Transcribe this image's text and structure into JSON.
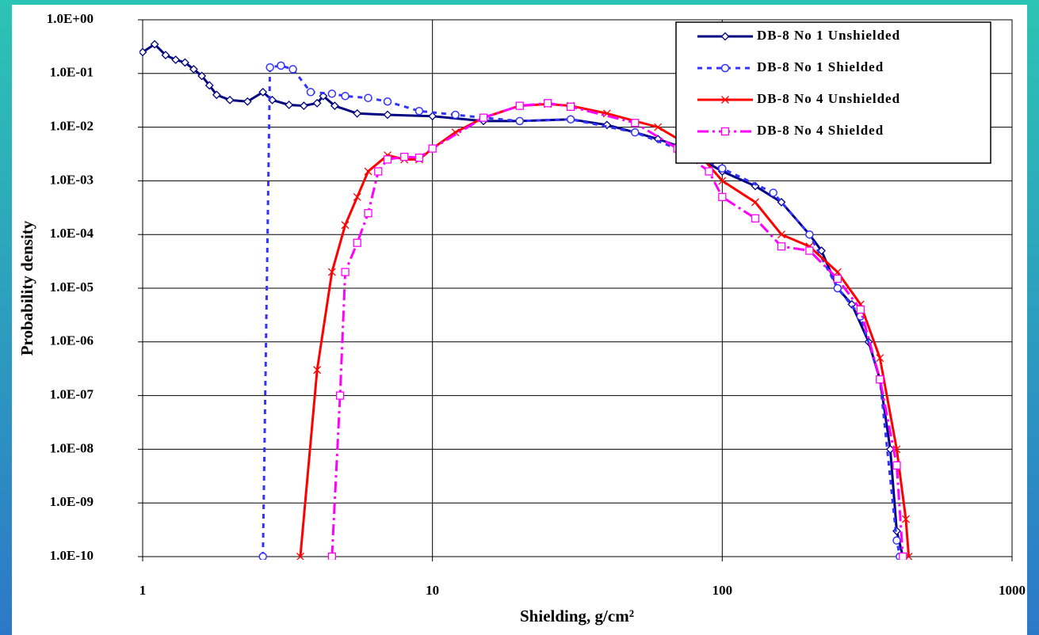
{
  "chart_data": {
    "type": "line",
    "x_label": "Shielding, g/cm²",
    "y_label": "Probability density",
    "xscale": "log",
    "yscale": "log",
    "grid": true,
    "legend": "top-right",
    "xlim": [
      1,
      1000
    ],
    "xticks": [
      1,
      10,
      100,
      1000
    ],
    "ylim": [
      1e-10,
      1
    ],
    "yticks": [
      {
        "value": 1,
        "label": "1.0E+00"
      },
      {
        "value": 0.1,
        "label": "1.0E-01"
      },
      {
        "value": 0.01,
        "label": "1.0E-02"
      },
      {
        "value": 0.001,
        "label": "1.0E-03"
      },
      {
        "value": 0.0001,
        "label": "1.0E-04"
      },
      {
        "value": 1e-05,
        "label": "1.0E-05"
      },
      {
        "value": 1e-06,
        "label": "1.0E-06"
      },
      {
        "value": 1e-07,
        "label": "1.0E-07"
      },
      {
        "value": 1e-08,
        "label": "1.0E-08"
      },
      {
        "value": 1e-09,
        "label": "1.0E-09"
      },
      {
        "value": 1e-10,
        "label": "1.0E-10"
      }
    ],
    "series": [
      {
        "name": "DB-8 No 1 Unshielded",
        "color": "#000080",
        "dash": "solid",
        "marker": "diamond",
        "x": [
          1.0,
          1.1,
          1.2,
          1.3,
          1.4,
          1.5,
          1.6,
          1.7,
          1.8,
          2.0,
          2.3,
          2.6,
          2.8,
          3.2,
          3.6,
          4.0,
          4.2,
          4.6,
          5.5,
          7,
          10,
          15,
          20,
          30,
          40,
          50,
          60,
          70,
          80,
          100,
          130,
          160,
          200,
          220,
          250,
          280,
          320,
          350,
          380,
          400,
          420
        ],
        "values": [
          0.25,
          0.35,
          0.22,
          0.18,
          0.16,
          0.12,
          0.09,
          0.06,
          0.04,
          0.032,
          0.03,
          0.045,
          0.032,
          0.026,
          0.025,
          0.028,
          0.038,
          0.025,
          0.018,
          0.017,
          0.016,
          0.013,
          0.013,
          0.014,
          0.011,
          0.008,
          0.006,
          0.0045,
          0.003,
          0.0015,
          0.0008,
          0.0004,
          0.0001,
          5e-05,
          1e-05,
          5e-06,
          1e-06,
          2e-07,
          1e-08,
          3e-10,
          1e-10
        ]
      },
      {
        "name": "DB-8 No 1 Shielded",
        "color": "#3333ff",
        "dash": "dashed",
        "marker": "circle",
        "x": [
          2.6,
          2.75,
          3.0,
          3.3,
          3.8,
          4.5,
          5,
          6,
          7,
          9,
          12,
          15,
          20,
          30,
          50,
          80,
          100,
          150,
          200,
          250,
          300,
          350,
          400,
          410
        ],
        "values": [
          1e-10,
          0.13,
          0.14,
          0.12,
          0.045,
          0.042,
          0.038,
          0.035,
          0.03,
          0.02,
          0.017,
          0.015,
          0.013,
          0.014,
          0.008,
          0.003,
          0.0017,
          0.0006,
          0.0001,
          1e-05,
          3e-06,
          2e-07,
          2e-10,
          1e-10
        ]
      },
      {
        "name": "DB-8 No 4 Unshielded",
        "color": "#ff0000",
        "dash": "solid",
        "marker": "cross",
        "x": [
          3.5,
          4.0,
          4.5,
          5,
          5.5,
          6,
          7,
          8,
          9,
          10,
          12,
          15,
          20,
          25,
          30,
          40,
          60,
          80,
          100,
          130,
          160,
          200,
          250,
          300,
          350,
          400,
          430,
          440
        ],
        "values": [
          1e-10,
          3e-07,
          2e-05,
          0.00015,
          0.0005,
          0.0015,
          0.003,
          0.0025,
          0.0025,
          0.004,
          0.008,
          0.015,
          0.025,
          0.027,
          0.025,
          0.018,
          0.01,
          0.004,
          0.001,
          0.0004,
          0.0001,
          6e-05,
          2e-05,
          5e-06,
          5e-07,
          1e-08,
          5e-10,
          1e-10
        ]
      },
      {
        "name": "DB-8 No 4 Shielded",
        "color": "#ff00ff",
        "dash": "dashdot",
        "marker": "square",
        "x": [
          4.5,
          4.8,
          5,
          5.5,
          6,
          6.5,
          7,
          8,
          9,
          10,
          15,
          20,
          25,
          30,
          50,
          70,
          90,
          100,
          130,
          160,
          200,
          250,
          300,
          350,
          400,
          420
        ],
        "values": [
          1e-10,
          1e-07,
          2e-05,
          7e-05,
          0.00025,
          0.0015,
          0.0025,
          0.0028,
          0.0027,
          0.004,
          0.015,
          0.025,
          0.028,
          0.024,
          0.012,
          0.004,
          0.0015,
          0.0005,
          0.0002,
          6e-05,
          5e-05,
          1.5e-05,
          4e-06,
          2e-07,
          5e-09,
          1e-10
        ]
      }
    ]
  }
}
